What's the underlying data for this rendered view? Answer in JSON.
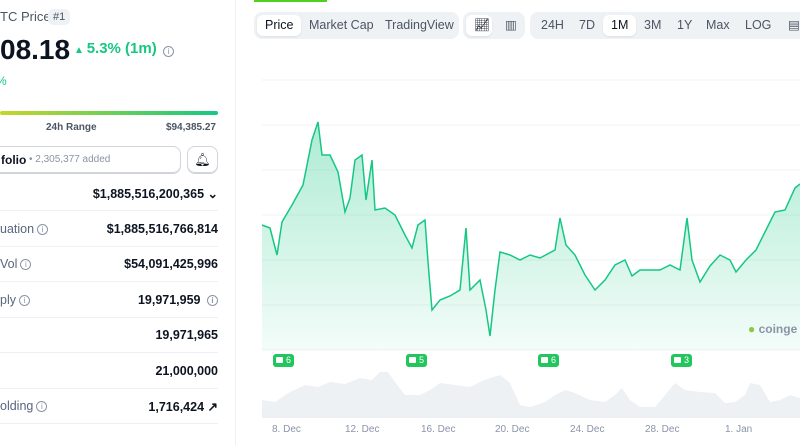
{
  "coin": {
    "title": "TC Price",
    "rank": "#1",
    "price": "08.18",
    "change": "5.3% (1m)",
    "change_sub": "%"
  },
  "range": {
    "label": "24h Range",
    "high": "$94,385.27"
  },
  "portfolio": {
    "label": "folio",
    "added": "2,305,377 added"
  },
  "stats": [
    {
      "label": "",
      "value": "$1,885,516,200,365",
      "info": false,
      "suffix": "chevron-down"
    },
    {
      "label": "uation",
      "value": "$1,885,516,766,814",
      "info": true
    },
    {
      "label": "Vol",
      "value": "$54,091,425,996",
      "info": true
    },
    {
      "label": "ply",
      "value": "19,971,959",
      "info": true,
      "suffix": "info"
    },
    {
      "label": "",
      "value": "19,971,965"
    },
    {
      "label": "",
      "value": "21,000,000"
    },
    {
      "label": "olding",
      "value": "1,716,424",
      "info": true,
      "suffix": "external-link"
    }
  ],
  "toolbar": {
    "tabs": [
      "Price",
      "Market Cap",
      "TradingView"
    ],
    "active_tab": "Price",
    "chart_types": [
      "line-chart-icon",
      "candlestick-icon"
    ],
    "ranges": [
      "24H",
      "7D",
      "1M",
      "3M",
      "1Y",
      "Max",
      "LOG"
    ],
    "active_range": "1M"
  },
  "chart": {
    "watermark": "coinge",
    "x_labels": [
      "8. Dec",
      "12. Dec",
      "16. Dec",
      "20. Dec",
      "24. Dec",
      "28. Dec",
      "1. Jan"
    ],
    "news_badges": [
      "6",
      "5",
      "6",
      "3"
    ],
    "accent": "#16c784"
  }
}
